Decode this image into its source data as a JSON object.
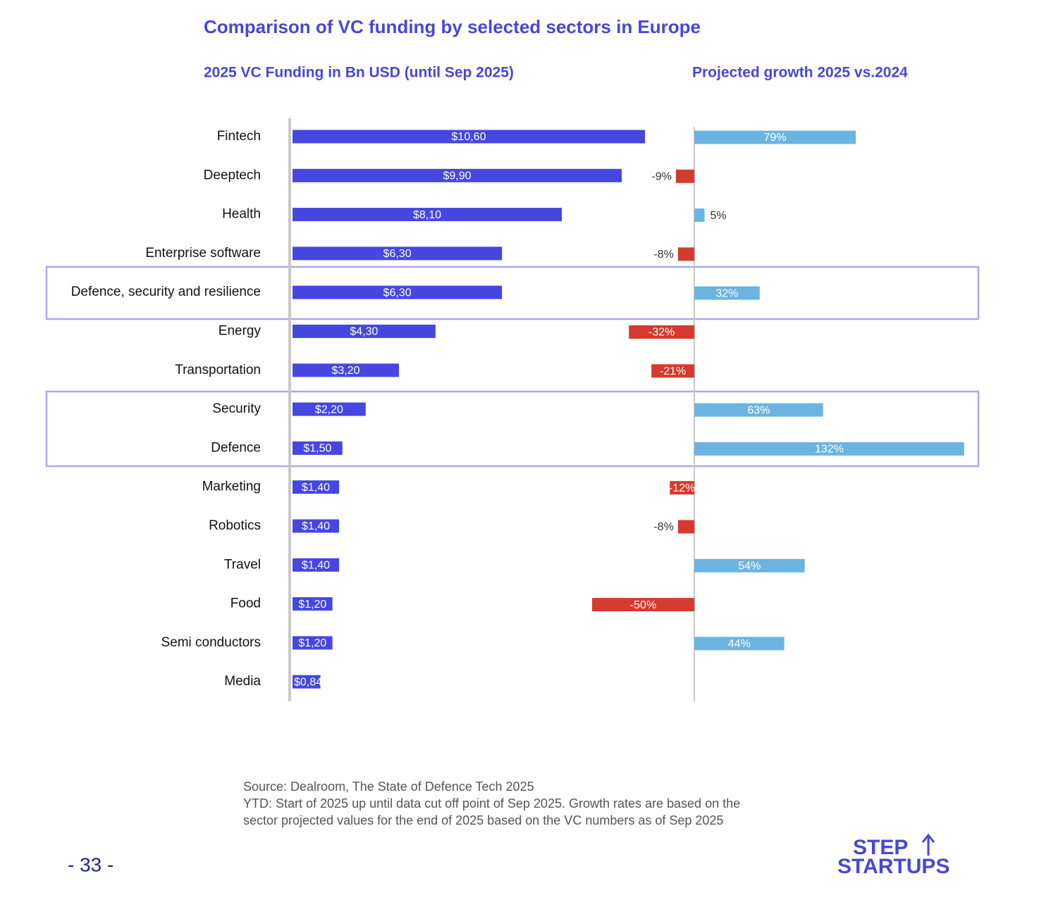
{
  "title": "Comparison of VC funding by selected sectors in Europe",
  "chart_data": [
    {
      "type": "bar",
      "title": "2025 VC Funding in Bn USD (until Sep 2025)",
      "categories": [
        "Fintech",
        "Deeptech",
        "Health",
        "Enterprise software",
        "Defence, security and resilience",
        "Energy",
        "Transportation",
        "Security",
        "Defence",
        "Marketing",
        "Robotics",
        "Travel",
        "Food",
        "Semi conductors",
        "Media"
      ],
      "values": [
        10.6,
        9.9,
        8.1,
        6.3,
        6.3,
        4.3,
        3.2,
        2.2,
        1.5,
        1.4,
        1.4,
        1.4,
        1.2,
        1.2,
        0.84
      ],
      "value_labels": [
        "$10,60",
        "$9,90",
        "$8,10",
        "$6,30",
        "$6,30",
        "$4,30",
        "$3,20",
        "$2,20",
        "$1,50",
        "$1,40",
        "$1,40",
        "$1,40",
        "$1,20",
        "$1,20",
        "$0,84"
      ],
      "color": "#4646e0"
    },
    {
      "type": "bar",
      "title": "Projected growth 2025 vs.2024",
      "values": [
        79,
        -9,
        5,
        -8,
        32,
        -32,
        -21,
        63,
        132,
        -12,
        -8,
        54,
        -50,
        44,
        0
      ],
      "value_labels": [
        "79%",
        "-9%",
        "5%",
        "-8%",
        "32%",
        "-32%",
        "-21%",
        "63%",
        "132%",
        "-12%",
        "-8%",
        "54%",
        "-50%",
        "44%",
        null
      ],
      "positive_color": "#6cb4e0",
      "negative_color": "#d63a2e"
    }
  ],
  "notes": [
    "Source: Dealroom, The State of Defence Tech 2025",
    "YTD: Start of 2025 up until data cut off point of Sep 2025. Growth rates are based on the",
    "sector projected values for the end of 2025 based on the VC numbers as of Sep 2025"
  ],
  "page_number": "- 33 -",
  "logo": [
    "STEP",
    "STARTUPS"
  ]
}
